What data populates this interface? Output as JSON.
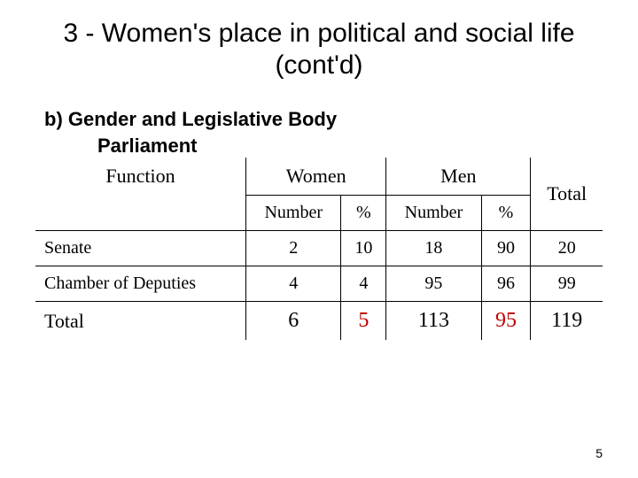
{
  "title": "3 - Women's place in political and social life (cont'd)",
  "subtitle": "b) Gender and Legislative Body",
  "subtitle2": "Parliament",
  "headers": {
    "function": "Function",
    "women": "Women",
    "men": "Men",
    "total": "Total",
    "number": "Number",
    "percent": "%"
  },
  "rows": [
    {
      "label": "Senate",
      "w_num": "2",
      "w_pct": "10",
      "m_num": "18",
      "m_pct": "90",
      "total": "20"
    },
    {
      "label": "Chamber of Deputies",
      "w_num": "4",
      "w_pct": "4",
      "m_num": "95",
      "m_pct": "96",
      "total": "99"
    }
  ],
  "total_row": {
    "label": "Total",
    "w_num": "6",
    "w_pct": "5",
    "m_num": "113",
    "m_pct": "95",
    "total": "119"
  },
  "page_number": "5"
}
